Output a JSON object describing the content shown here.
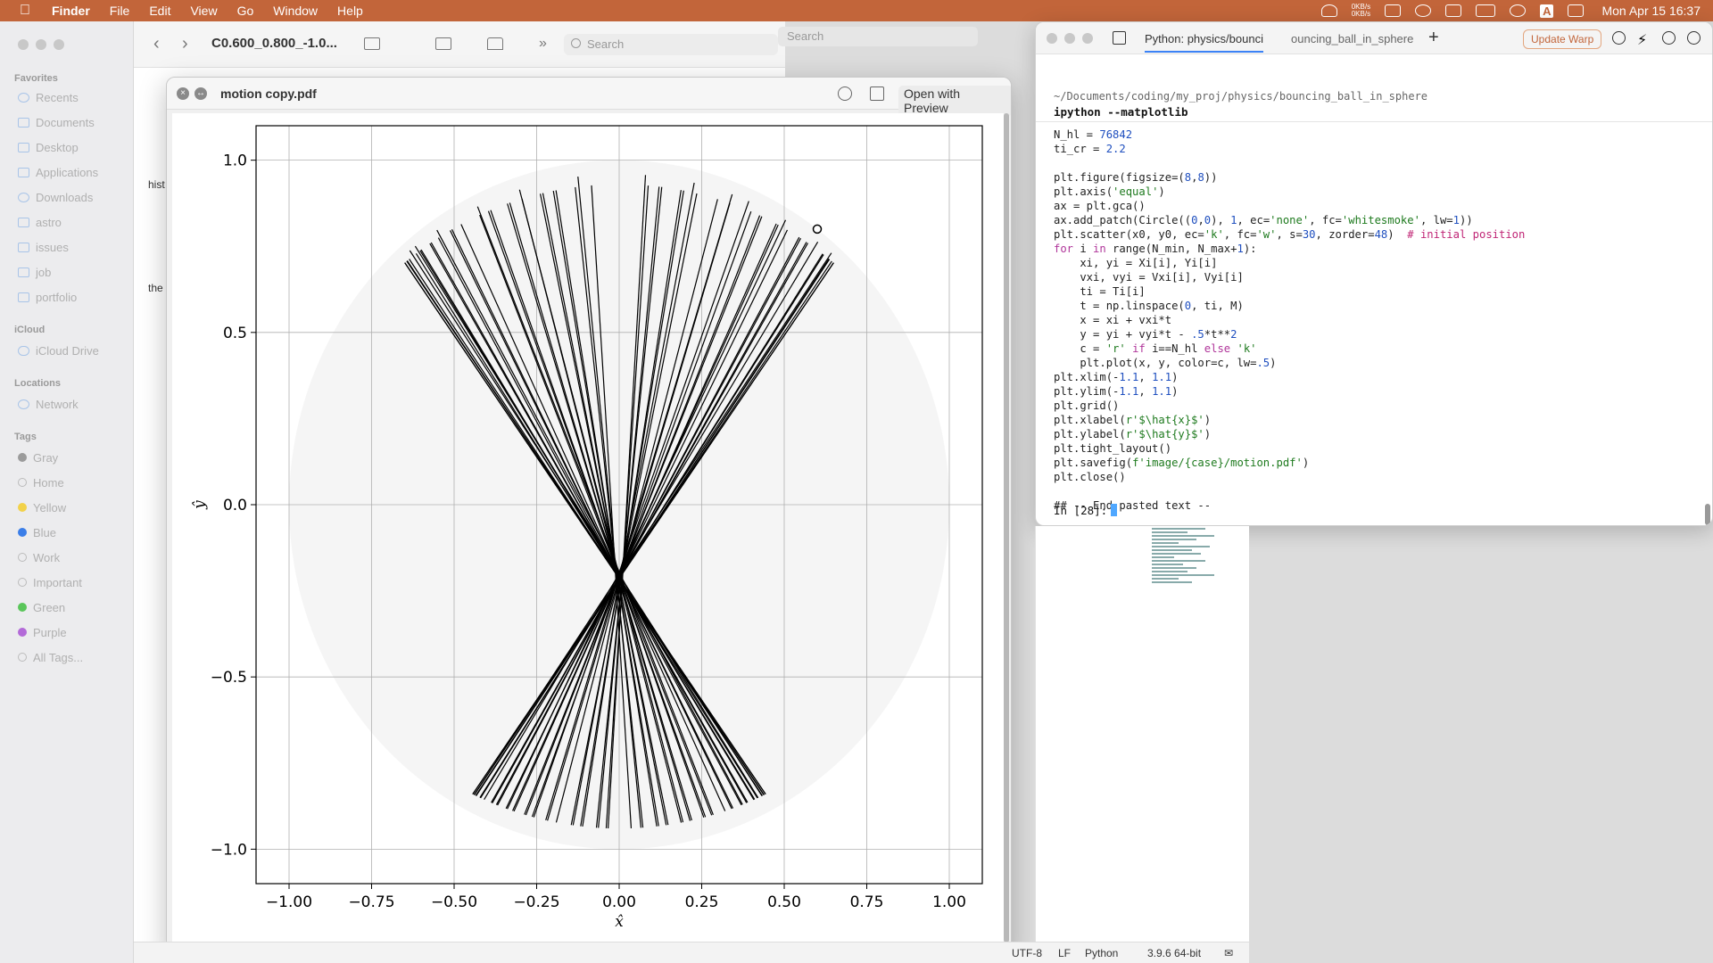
{
  "menubar": {
    "app": "Finder",
    "items": [
      "File",
      "Edit",
      "View",
      "Go",
      "Window",
      "Help"
    ],
    "net_speed_up": "0KB/s",
    "net_speed_down": "0KB/s",
    "datetime": "Mon Apr 15  16:37",
    "input_source": "A"
  },
  "finder": {
    "title": "C0.600_0.800_-1.0...",
    "search_placeholder": "Search",
    "sidebar": {
      "favorites_label": "Favorites",
      "favorites": [
        "Recents",
        "Documents",
        "Desktop",
        "Applications",
        "Downloads",
        "astro",
        "issues",
        "job",
        "portfolio"
      ],
      "icloud_label": "iCloud",
      "icloud": [
        "iCloud Drive"
      ],
      "locations_label": "Locations",
      "locations": [
        "Network"
      ],
      "tags_label": "Tags",
      "tags": [
        {
          "name": "Gray",
          "color": "#9b9b9b"
        },
        {
          "name": "Home",
          "color": "#ffffff"
        },
        {
          "name": "Yellow",
          "color": "#f2d24a"
        },
        {
          "name": "Blue",
          "color": "#3b7ee8"
        },
        {
          "name": "Work",
          "color": "#ffffff"
        },
        {
          "name": "Important",
          "color": "#ffffff"
        },
        {
          "name": "Green",
          "color": "#5ac65a"
        },
        {
          "name": "Purple",
          "color": "#b36ad8"
        },
        {
          "name": "All Tags...",
          "color": "#ffffff"
        }
      ]
    },
    "content_fragments": [
      "hist",
      "the"
    ]
  },
  "behind_search_placeholder": "Search",
  "preview": {
    "title": "motion copy.pdf",
    "open_with": "Open with Preview"
  },
  "chart_data": {
    "type": "line",
    "title": "",
    "xlabel": "x̂",
    "ylabel": "ŷ",
    "xlim": [
      -1.1,
      1.1
    ],
    "ylim": [
      -1.1,
      1.1
    ],
    "xticks": [
      -1.0,
      -0.75,
      -0.5,
      -0.25,
      0.0,
      0.25,
      0.5,
      0.75,
      1.0
    ],
    "xtick_labels": [
      "−1.00",
      "−0.75",
      "−0.50",
      "−0.25",
      "0.00",
      "0.25",
      "0.50",
      "0.75",
      "1.00"
    ],
    "yticks": [
      -1.0,
      -0.5,
      0.0,
      0.5,
      1.0
    ],
    "ytick_labels": [
      "−1.0",
      "−0.5",
      "0.0",
      "0.5",
      "1.0"
    ],
    "grid": true,
    "circle": {
      "center": [
        0,
        0
      ],
      "radius": 1,
      "fill": "#f5f5f5"
    },
    "initial_position": [
      0.6,
      0.8
    ],
    "trajectory_color": "#000000",
    "trajectory_count": 64,
    "envelope_throat_halfwidth": 0.12
  },
  "warp": {
    "tabs": [
      "Python: physics/bounci",
      "ouncing_ball_in_sphere"
    ],
    "update_label": "Update Warp",
    "path": "~/Documents/coding/my_proj/physics/bouncing_ball_in_sphere",
    "command": "ipython --matplotlib",
    "prompt": "In [28]:"
  },
  "statusbar": {
    "encoding": "UTF-8",
    "eol": "LF",
    "language": "Python",
    "interpreter": "3.9.6 64-bit"
  }
}
